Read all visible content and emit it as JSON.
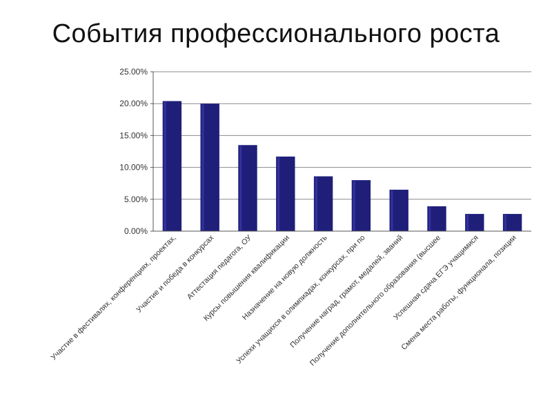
{
  "chart_data": {
    "type": "bar",
    "title": "События профессионального роста",
    "xlabel": "",
    "ylabel": "",
    "ylim": [
      0,
      25
    ],
    "yticks": [
      "0.00%",
      "5.00%",
      "10.00%",
      "15.00%",
      "20.00%",
      "25.00%"
    ],
    "grid": true,
    "legend": "none",
    "categories": [
      "Участие в фестивалях, конференциях, проектах,",
      "Участие и победа в конкурсах",
      "Аттестация педагога, ОУ",
      "Курсы повышения квалификации",
      "Назначение на новую должность",
      "Успехи учащихся в олимпиадах, конкурсах, при по",
      "Получение наград, грамот, медалей, званий",
      "Получение дополнительного образования (высшее",
      "Успешная сдача ЕГЭ учащимися",
      "Смена места работы, функционала, позиции"
    ],
    "values": [
      20.4,
      20.0,
      13.5,
      11.7,
      8.6,
      8.0,
      6.5,
      3.9,
      2.7,
      2.7
    ],
    "unit": "%",
    "bar_color": "#1f1f7a",
    "bar_highlight": "#3a3ab0",
    "grid_color": "#8a8a8a",
    "axis_color": "#555555"
  }
}
